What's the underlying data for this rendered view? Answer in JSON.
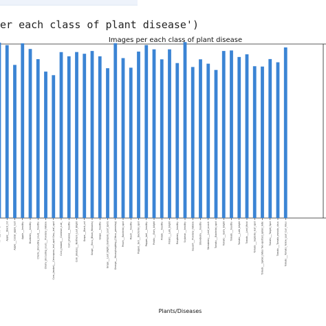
{
  "code": {
    "line": "er each class of plant disease')"
  },
  "chart_data": {
    "type": "bar",
    "title": "Images per each class of plant disease",
    "xlabel": "Plants/Diseases",
    "ylabel": "",
    "ylim": [
      0,
      2000
    ],
    "color": "#3b84d4",
    "grid": false,
    "legend": "none",
    "categories": [
      "Apple___Apple_scab",
      "Apple___Black_rot",
      "Apple___Cedar_apple_rust",
      "Apple___healthy",
      "Blueberry___healthy",
      "Cherry_(including_sour)___healthy",
      "Cherry_(including_sour)___Powdery_mildew",
      "Corn_(maize)___Cercospora_leaf_spot Gray_leaf_spot",
      "Corn_(maize)___Common_rust_",
      "Corn_(maize)___healthy",
      "Corn_(maize)___Northern_Leaf_Blight",
      "Grape___Black_rot",
      "Grape___Esca_(Black_Measles)",
      "Grape___healthy",
      "Grape___Leaf_blight_(Isariopsis_Leaf_Spot)",
      "Orange___Haunglongbing_(Citrus_greening)",
      "Peach___Bacterial_spot",
      "Peach___healthy",
      "Pepper,_bell___Bacterial_spot",
      "Pepper,_bell___healthy",
      "Potato___Early_blight",
      "Potato___healthy",
      "Potato___Late_blight",
      "Raspberry___healthy",
      "Soybean___healthy",
      "Squash___Powdery_mildew",
      "Strawberry___healthy",
      "Strawberry___Leaf_scorch",
      "Tomato___Bacterial_spot",
      "Tomato___Early_blight",
      "Tomato___healthy",
      "Tomato___Late_blight",
      "Tomato___Leaf_Mold",
      "Tomato___Septoria_leaf_spot",
      "Tomato___Spider_mites Two-spotted_spider_mite",
      "Tomato___Target_Spot",
      "Tomato___Tomato_mosaic_virus",
      "Tomato___Tomato_Yellow_Leaf_Curl_Virus"
    ],
    "values": [
      2016,
      1987,
      1760,
      2008,
      1943,
      1826,
      1683,
      1642,
      1907,
      1859,
      1908,
      1888,
      1920,
      1859,
      1722,
      2010,
      1838,
      1728,
      1913,
      1988,
      1939,
      1824,
      1939,
      1781,
      2022,
      1736,
      1824,
      1774,
      1702,
      1920,
      1926,
      1851,
      1882,
      1745,
      1741,
      1827,
      1790,
      1961
    ]
  }
}
